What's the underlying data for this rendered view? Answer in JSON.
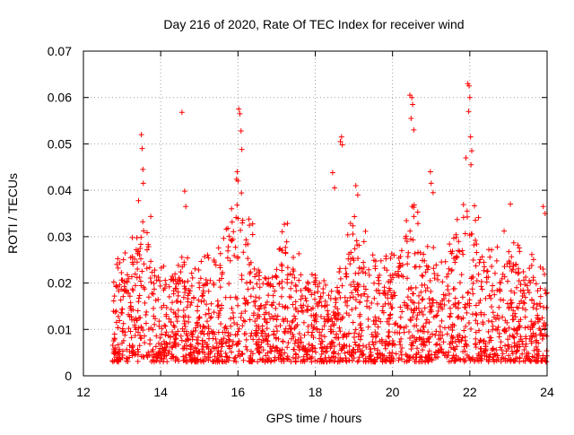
{
  "chart_data": {
    "type": "scatter",
    "title": "Day 216 of 2020, Rate Of TEC Index for receiver wind",
    "xlabel": "GPS time / hours",
    "ylabel": "ROTI / TECUs",
    "xlim": [
      12,
      24
    ],
    "ylim": [
      0,
      0.07
    ],
    "xticks": [
      12,
      14,
      16,
      18,
      20,
      22,
      24
    ],
    "xtick_labels": [
      "12",
      "14",
      "16",
      "18",
      "20",
      "22",
      "24"
    ],
    "yticks": [
      0,
      0.01,
      0.02,
      0.03,
      0.04,
      0.05,
      0.06,
      0.07
    ],
    "ytick_labels": [
      "0",
      "0.01",
      "0.02",
      "0.03",
      "0.04",
      "0.05",
      "0.06",
      "0.07"
    ],
    "grid": true,
    "marker": "+",
    "series_color": "#ff0000",
    "x_data_range": [
      12.75,
      24.0
    ],
    "points": [
      [
        13.5,
        0.052
      ],
      [
        13.52,
        0.049
      ],
      [
        13.54,
        0.0445
      ],
      [
        13.55,
        0.0415
      ],
      [
        14.55,
        0.0568
      ],
      [
        14.62,
        0.0398
      ],
      [
        14.65,
        0.0365
      ],
      [
        16.02,
        0.0575
      ],
      [
        16.05,
        0.0565
      ],
      [
        16.08,
        0.0528
      ],
      [
        16.1,
        0.0488
      ],
      [
        15.98,
        0.044
      ],
      [
        16.0,
        0.042
      ],
      [
        18.68,
        0.0515
      ],
      [
        18.65,
        0.0505
      ],
      [
        18.7,
        0.0498
      ],
      [
        18.45,
        0.0438
      ],
      [
        18.5,
        0.0405
      ],
      [
        19.05,
        0.041
      ],
      [
        19.1,
        0.039
      ],
      [
        20.45,
        0.0605
      ],
      [
        20.5,
        0.06
      ],
      [
        20.52,
        0.0585
      ],
      [
        20.48,
        0.0555
      ],
      [
        20.55,
        0.053
      ],
      [
        20.98,
        0.044
      ],
      [
        21.0,
        0.0415
      ],
      [
        21.05,
        0.0395
      ],
      [
        21.95,
        0.063
      ],
      [
        21.98,
        0.0625
      ],
      [
        22.0,
        0.06
      ],
      [
        21.97,
        0.057
      ],
      [
        22.02,
        0.0515
      ],
      [
        22.05,
        0.0485
      ],
      [
        21.9,
        0.047
      ],
      [
        22.03,
        0.0455
      ],
      [
        23.05,
        0.037
      ],
      [
        23.9,
        0.0365
      ],
      [
        23.95,
        0.035
      ]
    ]
  }
}
